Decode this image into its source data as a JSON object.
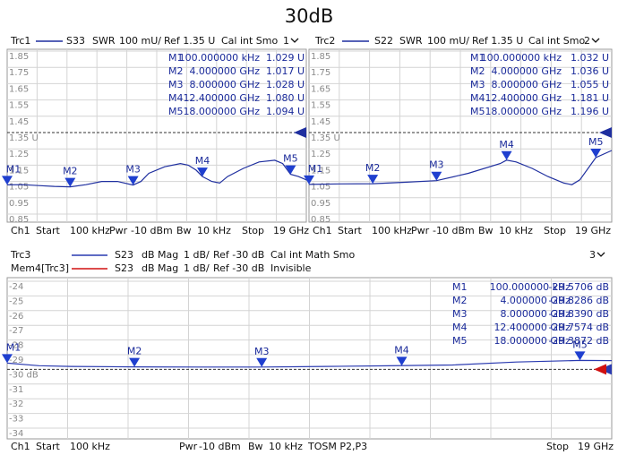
{
  "title": "30dB",
  "chart_data": [
    {
      "type": "line",
      "window": "1",
      "series": [
        {
          "name": "Trc1",
          "color": "#1f2f9f",
          "header": [
            "S33",
            "SWR",
            "100 mU/",
            "Ref 1.35 U",
            "Cal int Smo"
          ],
          "x": [
            0.0001,
            1,
            2,
            3,
            4,
            5,
            6,
            7,
            8,
            8.5,
            9,
            10,
            11,
            11.5,
            12,
            12.4,
            13,
            13.5,
            14,
            15,
            16,
            17,
            17.5,
            18,
            18.5,
            19
          ],
          "values": [
            1.029,
            1.03,
            1.025,
            1.02,
            1.017,
            1.03,
            1.05,
            1.05,
            1.028,
            1.05,
            1.1,
            1.14,
            1.16,
            1.15,
            1.12,
            1.08,
            1.05,
            1.04,
            1.08,
            1.13,
            1.17,
            1.18,
            1.16,
            1.094,
            1.08,
            1.06
          ]
        }
      ],
      "ylim": [
        0.85,
        1.85
      ],
      "yticks": [
        0.85,
        0.95,
        1.05,
        1.15,
        1.25,
        {
          "value": 1.35,
          "label": "1.35 U"
        },
        1.45,
        1.55,
        1.65,
        1.75,
        1.85
      ],
      "xlim": [
        0.0001,
        19
      ],
      "footer": [
        "Ch1",
        "Start",
        "100 kHz",
        "Pwr",
        "-10 dBm",
        "Bw",
        "10 kHz",
        "Stop",
        "19 GHz"
      ],
      "markers": {
        "names": [
          "M1",
          "M2",
          "M3",
          "M4",
          "M5"
        ],
        "x": [
          0.0001,
          4,
          8,
          12.4,
          18
        ],
        "x_labels": [
          "100.000000 kHz",
          "4.000000 GHz",
          "8.000000 GHz",
          "12.400000 GHz",
          "18.000000 GHz"
        ],
        "values": [
          1.029,
          1.017,
          1.028,
          1.08,
          1.094
        ],
        "value_labels": [
          "1.029 U",
          "1.017 U",
          "1.028 U",
          "1.080 U",
          "1.094 U"
        ]
      }
    },
    {
      "type": "line",
      "window": "2",
      "series": [
        {
          "name": "Trc2",
          "color": "#1f2f9f",
          "header": [
            "S22",
            "SWR",
            "100 mU/",
            "Ref 1.35 U",
            "Cal int Smo"
          ],
          "x": [
            0.0001,
            2,
            4,
            6,
            8,
            10,
            12,
            12.4,
            13,
            14,
            15,
            16,
            16.5,
            17,
            18,
            19
          ],
          "values": [
            1.032,
            1.035,
            1.036,
            1.045,
            1.055,
            1.1,
            1.16,
            1.181,
            1.17,
            1.13,
            1.08,
            1.04,
            1.03,
            1.06,
            1.196,
            1.24
          ]
        }
      ],
      "ylim": [
        0.85,
        1.85
      ],
      "yticks": [
        0.85,
        0.95,
        1.05,
        1.15,
        1.25,
        {
          "value": 1.35,
          "label": "1.35 U"
        },
        1.45,
        1.55,
        1.65,
        1.75,
        1.85
      ],
      "xlim": [
        0.0001,
        19
      ],
      "footer": [
        "Ch1",
        "Start",
        "100 kHz",
        "Pwr",
        "-10 dBm",
        "Bw",
        "10 kHz",
        "Stop",
        "19 GHz"
      ],
      "markers": {
        "names": [
          "M1",
          "M2",
          "M3",
          "M4",
          "M5"
        ],
        "x": [
          0.0001,
          4,
          8,
          12.4,
          18
        ],
        "x_labels": [
          "100.000000 kHz",
          "4.000000 GHz",
          "8.000000 GHz",
          "12.400000 GHz",
          "18.000000 GHz"
        ],
        "values": [
          1.032,
          1.036,
          1.055,
          1.181,
          1.196
        ],
        "value_labels": [
          "1.032 U",
          "1.036 U",
          "1.055 U",
          "1.181 U",
          "1.196 U"
        ]
      }
    },
    {
      "type": "line",
      "window": "3",
      "series": [
        {
          "name": "Trc3",
          "color": "#2a3ab0",
          "header": [
            "S23",
            "dB Mag",
            "1 dB/",
            "Ref -30 dB",
            "Cal int Math Smo"
          ],
          "x": [
            0.0001,
            1,
            2,
            4,
            6,
            8,
            10,
            12,
            14,
            16,
            18,
            19
          ],
          "values": [
            -29.5706,
            -29.75,
            -29.8,
            -29.8286,
            -29.84,
            -29.839,
            -29.8,
            -29.7574,
            -29.7,
            -29.5,
            -29.3872,
            -29.4
          ]
        },
        {
          "name": "Mem4[Trc3]",
          "color": "#d01010",
          "header": [
            "S23",
            "dB Mag",
            "1 dB/",
            "Ref -30 dB",
            "Invisible"
          ]
        }
      ],
      "ylim": [
        -34,
        -24
      ],
      "yticks": [
        -34,
        -33,
        -32,
        -31,
        {
          "value": -30,
          "label": "-30 dB"
        },
        -29,
        -28,
        -27,
        -26,
        -25,
        -24
      ],
      "xlim": [
        0.0001,
        19
      ],
      "footer": [
        "Ch1",
        "Start",
        "100 kHz",
        "Pwr",
        "-10 dBm",
        "Bw",
        "10 kHz",
        "TOSM P2,P3",
        "Stop",
        "19 GHz"
      ],
      "markers": {
        "names": [
          "M1",
          "M2",
          "M3",
          "M4",
          "M5"
        ],
        "x": [
          0.0001,
          4,
          8,
          12.4,
          18
        ],
        "x_labels": [
          "100.000000 kHz",
          "4.000000 GHz",
          "8.000000 GHz",
          "12.400000 GHz",
          "18.000000 GHz"
        ],
        "values": [
          -29.5706,
          -29.8286,
          -29.839,
          -29.7574,
          -29.3872
        ],
        "value_labels": [
          "-29.5706 dB",
          "-29.8286 dB",
          "-29.8390 dB",
          "-29.7574 dB",
          "-29.3872 dB"
        ]
      }
    }
  ]
}
